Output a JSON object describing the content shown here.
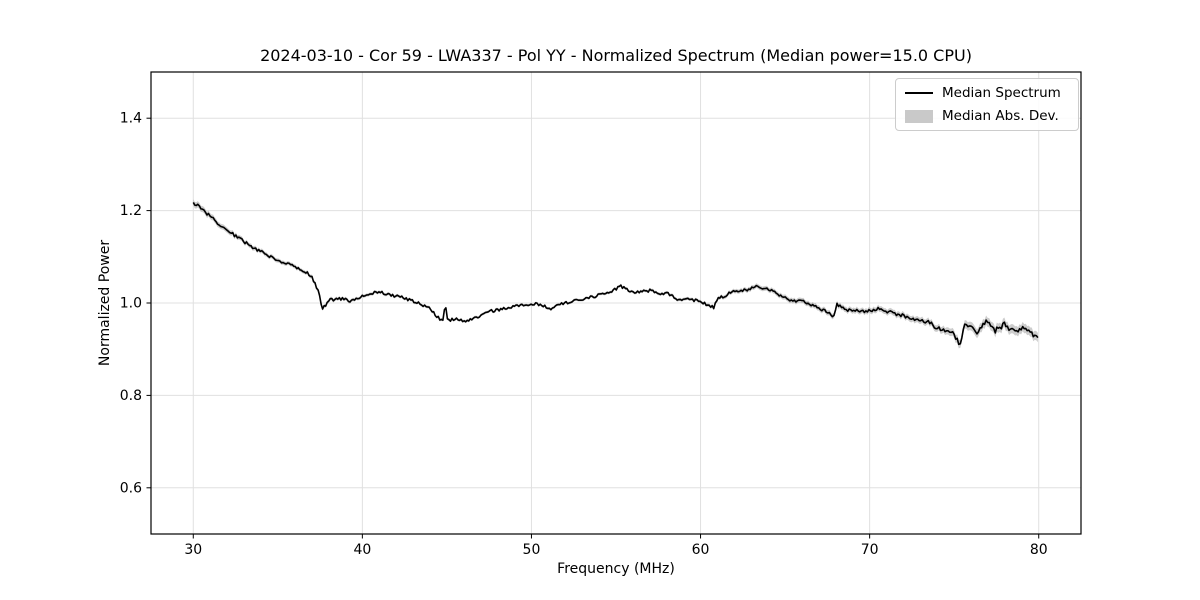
{
  "chart_data": {
    "type": "line",
    "title": "2024-03-10 - Cor 59 - LWA337 - Pol YY - Normalized Spectrum (Median power=15.0 CPU)",
    "xlabel": "Frequency (MHz)",
    "ylabel": "Normalized Power",
    "xlim": [
      27.5,
      82.5
    ],
    "ylim": [
      0.5,
      1.5
    ],
    "xticks": [
      30,
      40,
      50,
      60,
      70,
      80
    ],
    "yticks": [
      0.6,
      0.8,
      1.0,
      1.2,
      1.4
    ],
    "grid": true,
    "noise_amplitude": 0.0032,
    "colors": {
      "grid": "#e0e0e0",
      "spine": "#000000",
      "background": "#ffffff"
    },
    "legend": {
      "position": "upper right",
      "entries": [
        {
          "label": "Median Spectrum",
          "swatch": "line",
          "color": "#000000"
        },
        {
          "label": "Median Abs. Dev.",
          "swatch": "patch",
          "color": "#c9c9c9"
        }
      ]
    },
    "series": [
      {
        "name": "Median Spectrum",
        "type": "line",
        "color": "#000000",
        "x": [
          30,
          30.3,
          30.6,
          31,
          31.5,
          32,
          32.5,
          33,
          33.5,
          34,
          34.5,
          35,
          35.5,
          36,
          36.5,
          37,
          37.35,
          37.65,
          38.1,
          38.6,
          39,
          39.3,
          39.7,
          40,
          40.6,
          41.1,
          41.6,
          42.2,
          42.8,
          43.4,
          44,
          44.4,
          44.75,
          44.9,
          45.05,
          45.5,
          46,
          46.5,
          47,
          47.5,
          48,
          48.7,
          49.4,
          50,
          50.6,
          51.2,
          51.5,
          52,
          52.7,
          53.5,
          54.1,
          54.7,
          55.3,
          55.9,
          56.5,
          57,
          57.5,
          58,
          58.7,
          59.3,
          60,
          60.8,
          61,
          61.4,
          61.8,
          62.4,
          62.9,
          63.4,
          63.8,
          64.2,
          64.6,
          65,
          65.5,
          66,
          66.5,
          67,
          67.5,
          67.9,
          68.05,
          68.4,
          68.8,
          69.2,
          69.6,
          70,
          70.5,
          71,
          71.5,
          72,
          72.5,
          73,
          73.5,
          74,
          74.5,
          75,
          75.35,
          75.6,
          76,
          76.4,
          76.9,
          77.4,
          78,
          78.5,
          79,
          79.5,
          80
        ],
        "y": [
          1.218,
          1.21,
          1.201,
          1.187,
          1.172,
          1.158,
          1.145,
          1.133,
          1.121,
          1.111,
          1.101,
          1.093,
          1.086,
          1.078,
          1.071,
          1.058,
          1.03,
          0.988,
          1.007,
          1.008,
          1.01,
          1.002,
          1.009,
          1.014,
          1.021,
          1.024,
          1.017,
          1.014,
          1.007,
          0.999,
          0.988,
          0.972,
          0.958,
          0.996,
          0.962,
          0.966,
          0.96,
          0.964,
          0.972,
          0.982,
          0.985,
          0.99,
          0.995,
          0.999,
          0.996,
          0.987,
          0.999,
          1.0,
          1.005,
          1.012,
          1.018,
          1.026,
          1.036,
          1.023,
          1.026,
          1.027,
          1.02,
          1.022,
          1.007,
          1.008,
          1.003,
          0.99,
          1.012,
          1.015,
          1.023,
          1.026,
          1.03,
          1.036,
          1.032,
          1.026,
          1.019,
          1.012,
          1.004,
          1.008,
          0.996,
          0.99,
          0.979,
          0.97,
          0.998,
          0.988,
          0.984,
          0.986,
          0.982,
          0.984,
          0.988,
          0.982,
          0.977,
          0.972,
          0.964,
          0.961,
          0.958,
          0.946,
          0.94,
          0.932,
          0.908,
          0.954,
          0.945,
          0.938,
          0.958,
          0.94,
          0.954,
          0.938,
          0.945,
          0.934,
          0.928
        ]
      },
      {
        "name": "Median Abs. Dev.",
        "type": "band",
        "color": "#909090",
        "opacity": 0.45,
        "x": [
          30,
          33,
          37,
          40,
          45,
          50,
          55,
          60,
          63,
          66,
          69,
          72,
          74,
          75.5,
          77,
          80
        ],
        "halfwidth": [
          0.007,
          0.005,
          0.004,
          0.0035,
          0.003,
          0.0028,
          0.003,
          0.0035,
          0.005,
          0.0055,
          0.006,
          0.0065,
          0.007,
          0.009,
          0.01,
          0.01
        ]
      }
    ]
  }
}
